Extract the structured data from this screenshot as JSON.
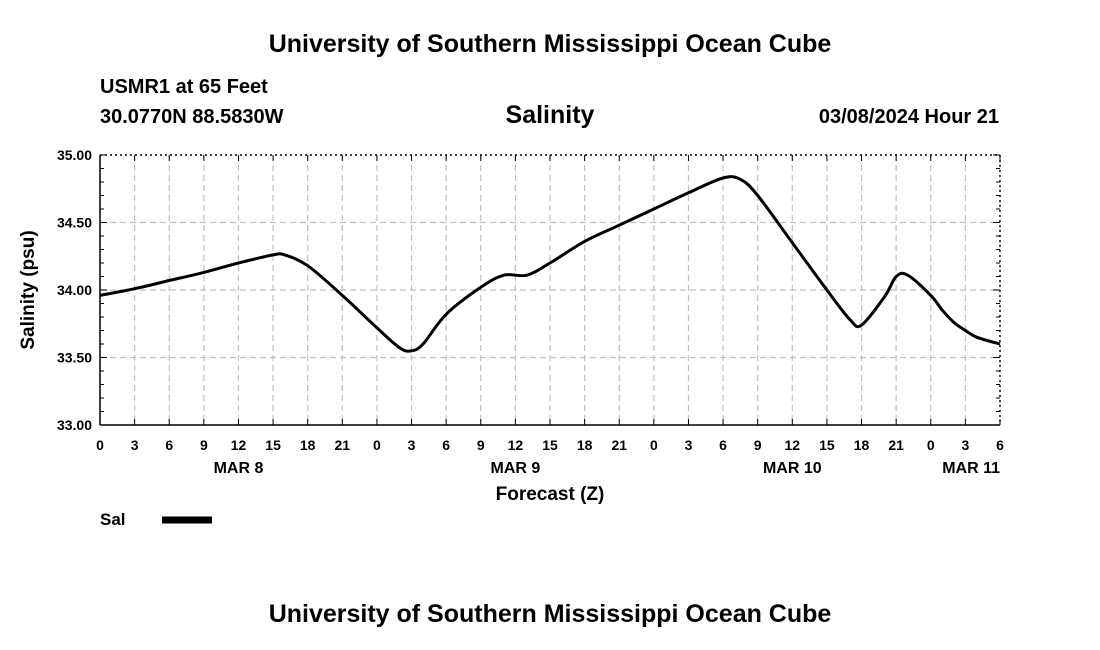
{
  "header": {
    "title": "University of Southern Mississippi Ocean Cube",
    "station": "USMR1 at 65 Feet",
    "coords": "30.0770N  88.5830W",
    "datetime": "03/08/2024 Hour 21"
  },
  "footer": {
    "title": "University of Southern Mississippi Ocean Cube"
  },
  "colors": {
    "line": "#000000",
    "grid": "#c0c0c0",
    "axis": "#000000"
  },
  "chart_data": {
    "type": "line",
    "title": "Salinity",
    "xlabel": "Forecast (Z)",
    "ylabel": "Salinity (psu)",
    "grid": true,
    "x_unit": "forecast hours from MAR 8 00Z",
    "xlim": [
      0,
      78
    ],
    "ylim": [
      33.0,
      35.0
    ],
    "y_ticks": [
      "33.00",
      "33.50",
      "34.00",
      "34.50",
      "35.00"
    ],
    "x_tick_labels": [
      "0",
      "3",
      "6",
      "9",
      "12",
      "15",
      "18",
      "21",
      "0",
      "3",
      "6",
      "9",
      "12",
      "15",
      "18",
      "21",
      "0",
      "3",
      "6",
      "9",
      "12",
      "15",
      "18",
      "21",
      "0",
      "3",
      "6"
    ],
    "date_labels": [
      {
        "label": "MAR 8",
        "hour": 12
      },
      {
        "label": "MAR 9",
        "hour": 36
      },
      {
        "label": "MAR 10",
        "hour": 60
      },
      {
        "label": "MAR 11",
        "hour": 78
      }
    ],
    "legend": {
      "label": "Sal",
      "position": "bottom-left"
    },
    "series": [
      {
        "name": "Sal",
        "x": [
          0,
          3,
          6,
          9,
          12,
          15,
          16,
          18,
          21,
          24,
          26,
          27,
          28,
          30,
          33,
          35,
          37,
          39,
          42,
          45,
          48,
          51,
          54,
          55.5,
          57,
          60,
          63,
          65,
          66,
          68,
          69,
          70,
          72,
          73,
          74,
          75,
          76,
          78
        ],
        "values": [
          33.96,
          34.01,
          34.07,
          34.13,
          34.2,
          34.26,
          34.26,
          34.18,
          33.96,
          33.72,
          33.57,
          33.55,
          33.6,
          33.82,
          34.02,
          34.11,
          34.11,
          34.2,
          34.36,
          34.48,
          34.6,
          34.72,
          34.83,
          34.82,
          34.7,
          34.35,
          34.0,
          33.78,
          33.74,
          33.95,
          34.1,
          34.11,
          33.96,
          33.85,
          33.76,
          33.7,
          33.65,
          33.6
        ]
      }
    ]
  }
}
